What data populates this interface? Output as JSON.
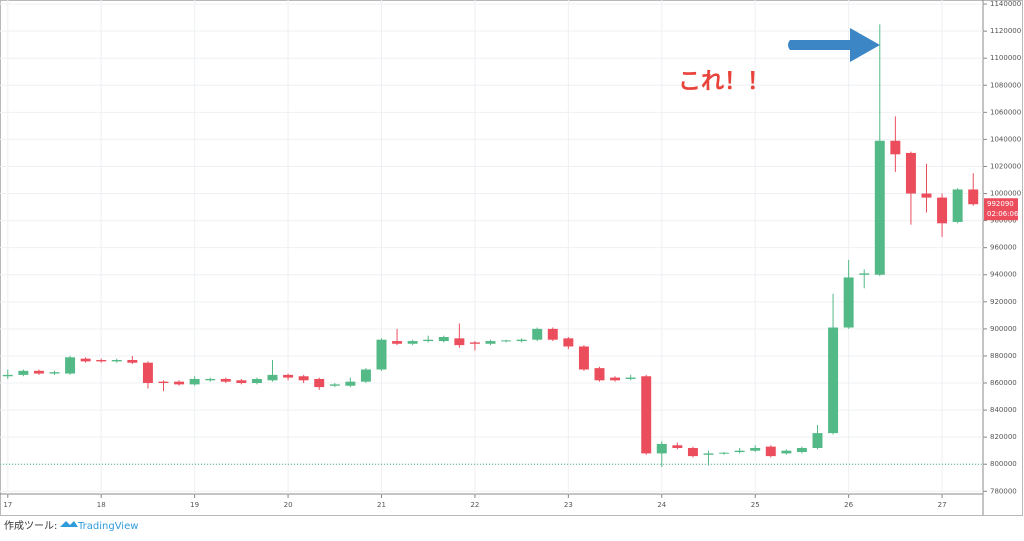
{
  "chart_data": {
    "type": "candlestick",
    "categories": [
      "17",
      null,
      null,
      null,
      null,
      null,
      "18",
      null,
      null,
      null,
      null,
      null,
      "19",
      null,
      null,
      null,
      null,
      null,
      "20",
      null,
      null,
      null,
      null,
      null,
      "21",
      null,
      null,
      null,
      null,
      null,
      "22",
      null,
      null,
      null,
      null,
      null,
      "23",
      null,
      null,
      null,
      null,
      null,
      "24",
      null,
      null,
      null,
      null,
      null,
      "25",
      null,
      null,
      null,
      null,
      null,
      "26",
      null,
      null,
      null,
      null,
      null,
      "27",
      null,
      null
    ],
    "open": [
      865000,
      866000,
      869000,
      867000,
      867000,
      878000,
      877000,
      876000,
      877000,
      875000,
      861000,
      861000,
      859000,
      862000,
      863000,
      862000,
      860000,
      862000,
      866000,
      865000,
      863000,
      858000,
      858000,
      861000,
      870000,
      891000,
      889000,
      891000,
      891000,
      893000,
      890000,
      889000,
      891000,
      891000,
      892000,
      900000,
      893000,
      887000,
      871000,
      864000,
      863000,
      865000,
      808000,
      814000,
      812000,
      807000,
      808000,
      809000,
      810000,
      813000,
      808000,
      809000,
      812000,
      823000,
      901000,
      940000,
      940000,
      1039000,
      1030000,
      1000000,
      997000,
      979000,
      1003000
    ],
    "high": [
      870000,
      870000,
      870000,
      869000,
      880000,
      879000,
      878000,
      878000,
      880000,
      876000,
      862000,
      862000,
      865000,
      864000,
      864000,
      863000,
      864000,
      877000,
      867000,
      866000,
      864000,
      860000,
      864000,
      871000,
      893000,
      900000,
      892000,
      895000,
      895000,
      904000,
      891000,
      892000,
      892000,
      893000,
      901000,
      901000,
      894000,
      888000,
      872000,
      865000,
      866000,
      866000,
      817000,
      816000,
      813000,
      810000,
      809000,
      812000,
      814000,
      814000,
      811000,
      813000,
      829000,
      926000,
      951000,
      944000,
      1125000,
      1057000,
      1031000,
      1022000,
      1000000,
      1004000,
      1015000
    ],
    "low": [
      863000,
      865000,
      866000,
      866000,
      866000,
      875000,
      875000,
      875000,
      874000,
      856000,
      854000,
      858000,
      858000,
      861000,
      860000,
      859000,
      859000,
      861000,
      862000,
      860000,
      855000,
      857000,
      857000,
      860000,
      869000,
      888000,
      888000,
      890000,
      890000,
      886000,
      884000,
      888000,
      890000,
      890000,
      891000,
      891000,
      885000,
      869000,
      861000,
      861000,
      862000,
      807000,
      798000,
      811000,
      805000,
      799000,
      807000,
      808000,
      809000,
      805000,
      807000,
      808000,
      811000,
      822000,
      900000,
      930000,
      939000,
      1016000,
      977000,
      986000,
      968000,
      978000,
      991000
    ],
    "close": [
      866000,
      869000,
      867000,
      868000,
      879000,
      876000,
      876000,
      877000,
      875000,
      860000,
      860000,
      859000,
      863000,
      863000,
      861000,
      860000,
      863000,
      866000,
      864000,
      862000,
      857000,
      859000,
      861000,
      870000,
      892000,
      889000,
      891000,
      892000,
      894000,
      888000,
      889000,
      891000,
      891500,
      892000,
      900000,
      892000,
      887000,
      870000,
      862000,
      862000,
      864000,
      808000,
      815000,
      812000,
      806000,
      808000,
      808500,
      810000,
      812000,
      806000,
      810000,
      812000,
      823000,
      901000,
      938000,
      941000,
      1039000,
      1029000,
      1000000,
      997000,
      978000,
      1003000,
      992090
    ],
    "up_color": "#53b987",
    "down_color": "#eb4d5c",
    "ylim": [
      778000,
      1143000
    ],
    "yticks": [
      780000,
      800000,
      820000,
      840000,
      860000,
      880000,
      900000,
      920000,
      940000,
      960000,
      980000,
      1000000,
      1020000,
      1040000,
      1060000,
      1080000,
      1100000,
      1120000,
      1140000
    ],
    "grid": true,
    "reference_line": 800000,
    "last_price": 992090,
    "countdown": "02:06:06",
    "annotation": "これ！！"
  },
  "footer": {
    "prefix": "作成ツール:",
    "brand": "TradingView"
  }
}
